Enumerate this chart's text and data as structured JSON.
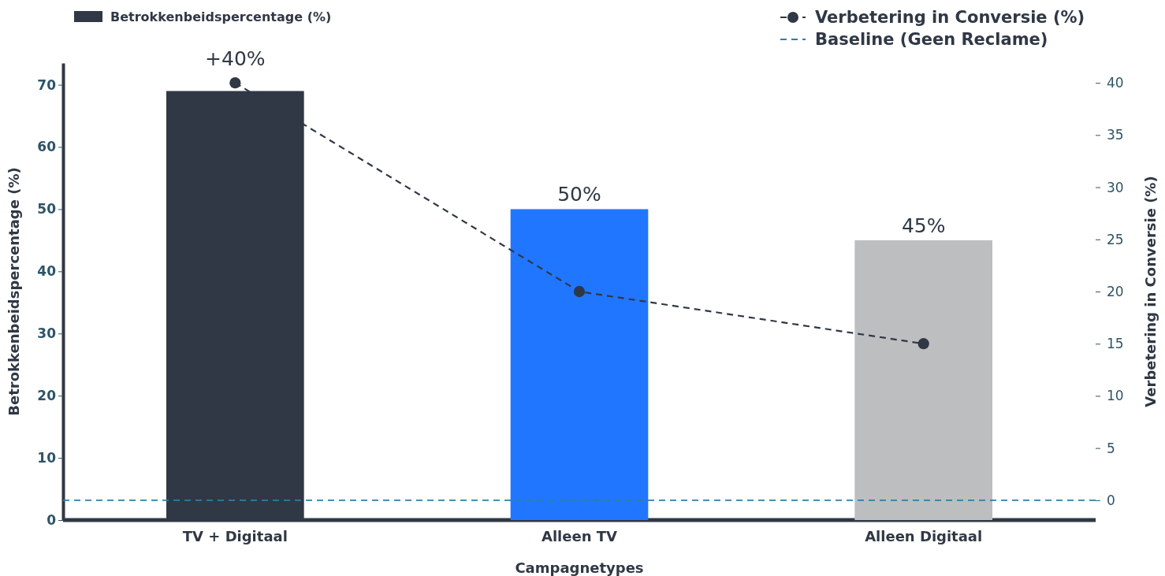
{
  "chart_data": {
    "type": "bar",
    "categories": [
      "TV + Digitaal",
      "Alleen TV",
      "Alleen Digitaal"
    ],
    "xlabel": "Campagnetypes",
    "ylabel": "Betrokkenbeidspercentage (%)",
    "y2label": "Verbetering in Conversie (%)",
    "series": [
      {
        "name": "Betrokkenbeidspercentage (%)",
        "color": "#303845",
        "colors": [
          "#303845",
          "#2176ff",
          "#bdbec0"
        ],
        "values": [
          69,
          50,
          45
        ],
        "value_labels": [
          null,
          "50%",
          "45%"
        ]
      },
      {
        "type": "line",
        "axis": "y2",
        "name": "Verbetering in Conversie (%)",
        "color": "#303845",
        "values": [
          40,
          20,
          15
        ],
        "value_labels": [
          "+40%",
          null,
          null
        ],
        "marker": "circle",
        "line_style": "dashed"
      }
    ],
    "ref_lines": [
      {
        "axis": "y2",
        "value": 0,
        "label": "Baseline (Geen Reclame)",
        "color": "#2a7fa8",
        "line_style": "dashed"
      }
    ],
    "ylim": [
      0,
      73.5
    ],
    "yticks": [
      0,
      10,
      20,
      30,
      40,
      50,
      60,
      70
    ],
    "y2lim": [
      -1.9,
      41.9
    ],
    "y2ticks": [
      0,
      5,
      10,
      15,
      20,
      25,
      30,
      35,
      40
    ],
    "legend": "top",
    "grid": false
  }
}
